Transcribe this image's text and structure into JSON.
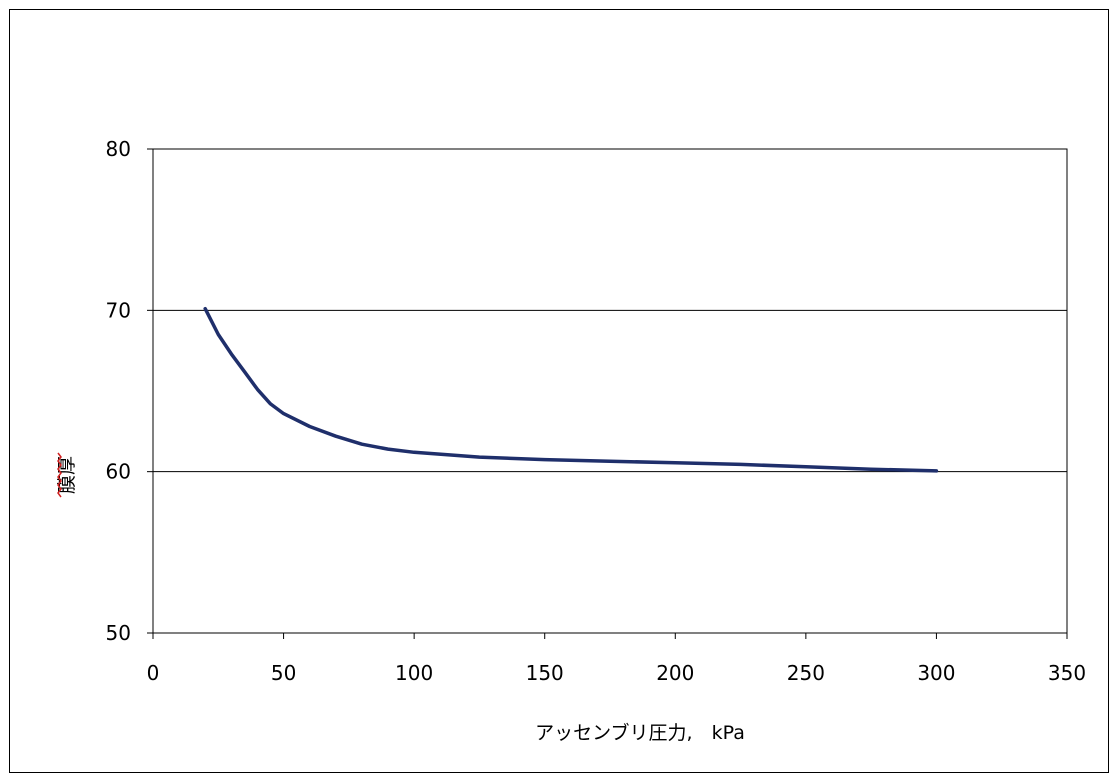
{
  "chart_data": {
    "type": "line",
    "title": "",
    "xlabel": "アッセンブリ圧力,　kPa",
    "ylabel": "膜厚",
    "xlim": [
      0,
      350
    ],
    "ylim": [
      50,
      80
    ],
    "x_ticks": [
      "0",
      "50",
      "100",
      "150",
      "200",
      "250",
      "300",
      "350"
    ],
    "y_ticks": [
      "50",
      "60",
      "70",
      "80"
    ],
    "grid": "horizontal major gridlines",
    "legend": "none",
    "series": [
      {
        "color": "#1f2f6b",
        "x": [
          20,
          25,
          30,
          35,
          40,
          45,
          50,
          60,
          70,
          80,
          90,
          100,
          125,
          150,
          175,
          200,
          225,
          250,
          275,
          300
        ],
        "y": [
          70.1,
          68.5,
          67.3,
          66.2,
          65.1,
          64.2,
          63.6,
          62.8,
          62.2,
          61.7,
          61.4,
          61.2,
          60.9,
          60.75,
          60.65,
          60.55,
          60.45,
          60.3,
          60.15,
          60.05
        ]
      }
    ]
  },
  "colors": {
    "line": "#1f2f6b",
    "axis": "#000000",
    "grid": "#000000",
    "ylabel_underline": "#d02020"
  }
}
